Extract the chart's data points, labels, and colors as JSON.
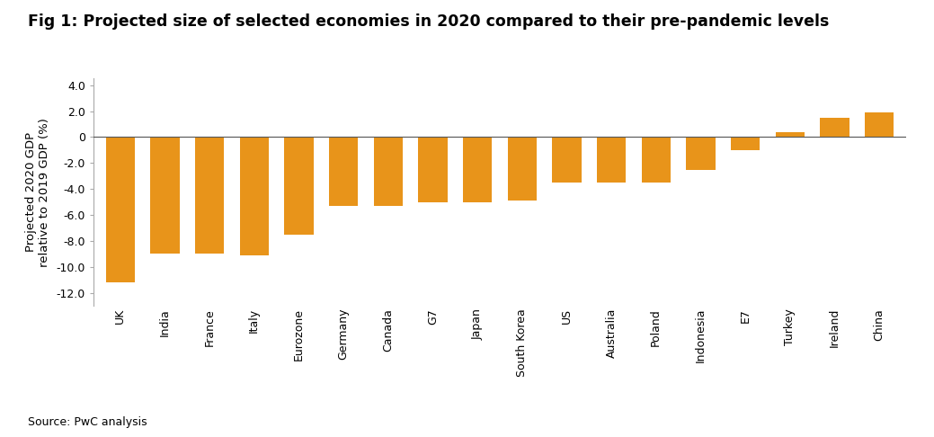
{
  "title": "Fig 1: Projected size of selected economies in 2020 compared to their pre-pandemic levels",
  "ylabel": "Projected 2020 GDP\nrelative to 2019 GDP (%)",
  "source": "Source: PwC analysis",
  "categories": [
    "UK",
    "India",
    "France",
    "Italy",
    "Eurozone",
    "Germany",
    "Canada",
    "G7",
    "Japan",
    "South Korea",
    "US",
    "Australia",
    "Poland",
    "Indonesia",
    "E7",
    "Turkey",
    "Ireland",
    "China"
  ],
  "values": [
    -11.2,
    -9.0,
    -9.0,
    -9.1,
    -7.5,
    -5.3,
    -5.3,
    -5.0,
    -5.0,
    -4.9,
    -3.5,
    -3.5,
    -3.5,
    -2.5,
    -1.0,
    0.4,
    1.5,
    1.9
  ],
  "bar_color": "#E8941A",
  "ylim": [
    -13.0,
    4.5
  ],
  "yticks": [
    4.0,
    2.0,
    0,
    -2.0,
    -4.0,
    -6.0,
    -8.0,
    -10.0,
    -12.0
  ],
  "ytick_labels": [
    "4.0",
    "2.0",
    "0",
    "-2.0",
    "-4.0",
    "-6.0",
    "-8.0",
    "-10.0",
    "-12.0"
  ],
  "background_color": "#ffffff",
  "title_fontsize": 12.5,
  "axis_fontsize": 9.5,
  "tick_fontsize": 9,
  "source_fontsize": 9
}
